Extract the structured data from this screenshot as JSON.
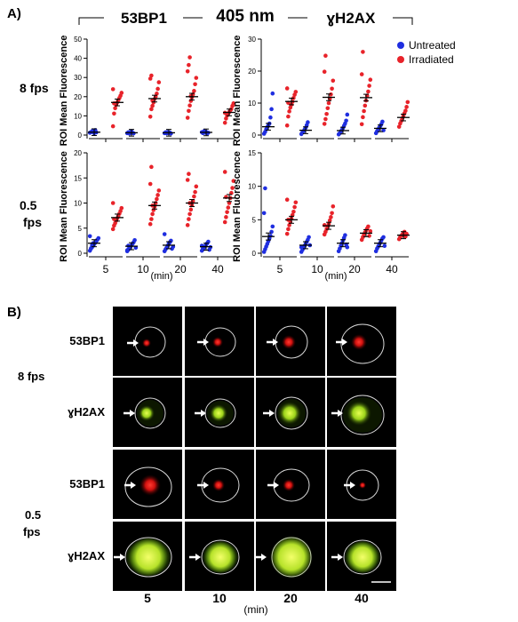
{
  "panel_a_label": "A)",
  "panel_b_label": "B)",
  "header": {
    "left_marker": "53BP1",
    "wavelength": "405 nm",
    "right_marker": "ɣH2AX"
  },
  "legend": {
    "placement": "top-right",
    "items": [
      {
        "label": "Untreated",
        "color": "#1f2ee0"
      },
      {
        "label": "Irradiated",
        "color": "#e8232a"
      }
    ]
  },
  "row_labels": {
    "fast": "8 fps",
    "slow_top": "0.5",
    "slow_bottom": "fps"
  },
  "xunit": "(min)",
  "colors": {
    "untreated": "#1f2ee0",
    "irradiated": "#e8232a"
  },
  "chart_data": [
    {
      "type": "scatter",
      "marker": "53BP1",
      "frame_rate": "8 fps",
      "ylabel": "ROI Mean Fluorescence",
      "xlabel": "(min)",
      "categories": [
        "5",
        "10",
        "20",
        "40"
      ],
      "ylim": [
        0,
        50
      ],
      "yticks": [
        0,
        10,
        20,
        30,
        40,
        50
      ],
      "series": [
        {
          "name": "Untreated",
          "points": [
            [
              1.2,
              1.5,
              2.0,
              1.8,
              1.0,
              2.6,
              1.4
            ],
            [
              1.0,
              1.4,
              0.8,
              1.6,
              1.9,
              1.2,
              0.9
            ],
            [
              1.0,
              1.4,
              0.9,
              1.6,
              1.1,
              1.3,
              0.8
            ],
            [
              1.5,
              1.0,
              2.0,
              1.3,
              1.7,
              0.9,
              1.2
            ]
          ],
          "mean": [
            1.5,
            1.2,
            1.2,
            1.4
          ]
        },
        {
          "name": "Irradiated",
          "points": [
            [
              4.6,
              11.2,
              14.0,
              15.8,
              17.1,
              18.2,
              19.3,
              20.5,
              22.0,
              23.9,
              16.5
            ],
            [
              9.6,
              13.5,
              15.2,
              17.0,
              18.8,
              20.0,
              21.6,
              24.1,
              27.5,
              29.4,
              31.0,
              18.0
            ],
            [
              9.0,
              12.6,
              15.4,
              17.8,
              19.6,
              21.2,
              23.0,
              26.5,
              29.8,
              33.2,
              36.5,
              40.5,
              20.3
            ],
            [
              6.4,
              8.6,
              10.2,
              11.1,
              12.0,
              12.9,
              13.6,
              15.2,
              16.5,
              11.6
            ]
          ],
          "mean": [
            17.0,
            19.0,
            20.0,
            11.8
          ]
        }
      ]
    },
    {
      "type": "scatter",
      "marker": "ɣH2AX",
      "frame_rate": "8 fps",
      "ylabel": "ROI Mean Fluorescence",
      "xlabel": "(min)",
      "categories": [
        "5",
        "10",
        "20",
        "40"
      ],
      "ylim": [
        0,
        30
      ],
      "yticks": [
        0,
        10,
        20,
        30
      ],
      "series": [
        {
          "name": "Untreated",
          "points": [
            [
              0.4,
              1.0,
              1.8,
              2.5,
              3.0,
              3.6,
              5.5,
              8.1,
              13.0
            ],
            [
              0.3,
              0.8,
              1.2,
              1.7,
              2.3,
              3.1,
              4.0
            ],
            [
              0.2,
              0.6,
              1.1,
              1.6,
              2.2,
              2.9,
              3.6,
              4.5,
              6.4
            ],
            [
              0.6,
              1.2,
              1.8,
              2.3,
              2.8,
              3.4,
              4.2,
              1.5
            ]
          ],
          "mean": [
            2.6,
            1.5,
            1.4,
            2.1
          ]
        },
        {
          "name": "Irradiated",
          "points": [
            [
              3.0,
              5.8,
              7.4,
              8.6,
              9.5,
              10.4,
              11.6,
              12.6,
              13.5,
              14.6,
              10.1
            ],
            [
              3.5,
              5.0,
              6.6,
              8.4,
              10.0,
              11.4,
              12.7,
              14.5,
              17.0,
              19.8,
              24.8
            ],
            [
              3.4,
              5.6,
              7.5,
              9.2,
              10.8,
              12.3,
              13.6,
              15.4,
              17.3,
              19.0,
              26.0
            ],
            [
              2.6,
              3.6,
              4.4,
              5.2,
              6.0,
              6.8,
              7.6,
              8.8,
              10.3
            ]
          ],
          "mean": [
            10.5,
            11.8,
            11.7,
            5.5
          ]
        }
      ]
    },
    {
      "type": "scatter",
      "marker": "53BP1",
      "frame_rate": "0.5 fps",
      "ylabel": "ROI Mean Fluorescence",
      "xlabel": "(min)",
      "categories": [
        "5",
        "10",
        "20",
        "40"
      ],
      "ylim": [
        0,
        20
      ],
      "yticks": [
        0,
        5,
        10,
        15,
        20
      ],
      "series": [
        {
          "name": "Untreated",
          "points": [
            [
              0.5,
              0.9,
              1.2,
              1.5,
              1.8,
              2.1,
              2.4,
              2.7,
              3.0,
              3.4,
              1.0,
              1.6,
              2.0
            ],
            [
              0.4,
              0.7,
              1.0,
              1.3,
              1.6,
              1.9,
              2.2,
              2.6,
              1.1,
              0.6,
              1.5
            ],
            [
              0.4,
              0.8,
              1.1,
              1.5,
              1.9,
              2.2,
              2.5,
              0.9,
              1.3,
              3.8
            ],
            [
              0.5,
              0.8,
              1.1,
              1.4,
              1.7,
              2.0,
              2.3,
              0.7,
              1.2,
              1.5,
              1.0
            ]
          ],
          "mean": [
            2.0,
            1.4,
            1.6,
            1.3
          ]
        },
        {
          "name": "Irradiated",
          "points": [
            [
              4.8,
              5.5,
              6.0,
              6.5,
              7.0,
              7.4,
              7.9,
              8.4,
              9.0,
              10.0,
              6.8
            ],
            [
              5.8,
              6.8,
              7.8,
              8.6,
              9.3,
              10.0,
              10.8,
              11.6,
              12.5,
              13.8,
              17.2,
              9.5
            ],
            [
              5.6,
              6.8,
              7.8,
              8.7,
              9.6,
              10.4,
              11.3,
              12.2,
              13.3,
              14.6,
              15.8,
              10.0
            ],
            [
              6.2,
              7.2,
              8.2,
              9.1,
              10.0,
              11.0,
              12.0,
              13.0,
              14.4,
              16.2,
              11.2
            ]
          ],
          "mean": [
            7.1,
            9.5,
            10.0,
            11.0
          ]
        }
      ]
    },
    {
      "type": "scatter",
      "marker": "ɣH2AX",
      "frame_rate": "0.5 fps",
      "ylabel": "ROI Mean Fluorescence",
      "xlabel": "(min)",
      "categories": [
        "5",
        "10",
        "20",
        "40"
      ],
      "ylim": [
        0,
        15
      ],
      "yticks": [
        0,
        5,
        10,
        15
      ],
      "series": [
        {
          "name": "Untreated",
          "points": [
            [
              0.2,
              0.6,
              1.0,
              1.4,
              1.8,
              2.2,
              2.6,
              3.2,
              4.0,
              6.0,
              9.7
            ],
            [
              0.2,
              0.5,
              0.8,
              1.1,
              1.4,
              1.7,
              2.0,
              2.4,
              1.2,
              0.9
            ],
            [
              0.3,
              0.7,
              1.1,
              1.5,
              1.9,
              2.3,
              2.7,
              1.3,
              0.9
            ],
            [
              0.3,
              0.7,
              1.0,
              1.3,
              1.6,
              1.9,
              2.2,
              2.4,
              1.1
            ]
          ],
          "mean": [
            2.5,
            1.2,
            1.5,
            1.5
          ]
        },
        {
          "name": "Irradiated",
          "points": [
            [
              2.9,
              3.6,
              4.2,
              4.7,
              5.2,
              5.7,
              6.2,
              6.9,
              7.6,
              8.0,
              5.0
            ],
            [
              2.8,
              3.2,
              3.6,
              4.0,
              4.4,
              4.9,
              5.4,
              6.0,
              7.0,
              4.2
            ],
            [
              2.0,
              2.4,
              2.8,
              3.1,
              3.4,
              3.7,
              4.0,
              2.6,
              3.3
            ],
            [
              2.1,
              2.4,
              2.6,
              2.8,
              3.0,
              3.2,
              2.5,
              2.9
            ]
          ],
          "mean": [
            5.0,
            4.1,
            3.0,
            2.7
          ]
        }
      ]
    }
  ],
  "micrographs": {
    "columns": [
      "5",
      "10",
      "20",
      "40"
    ],
    "xunit": "(min)",
    "rows": [
      {
        "label": "53BP1",
        "channel": "red"
      },
      {
        "label": "ɣH2AX",
        "channel": "green"
      },
      {
        "label": "53BP1",
        "channel": "red"
      },
      {
        "label": "ɣH2AX",
        "channel": "green"
      }
    ],
    "group_fast": "8 fps",
    "group_slow_top": "0.5",
    "group_slow_bottom": "fps"
  }
}
